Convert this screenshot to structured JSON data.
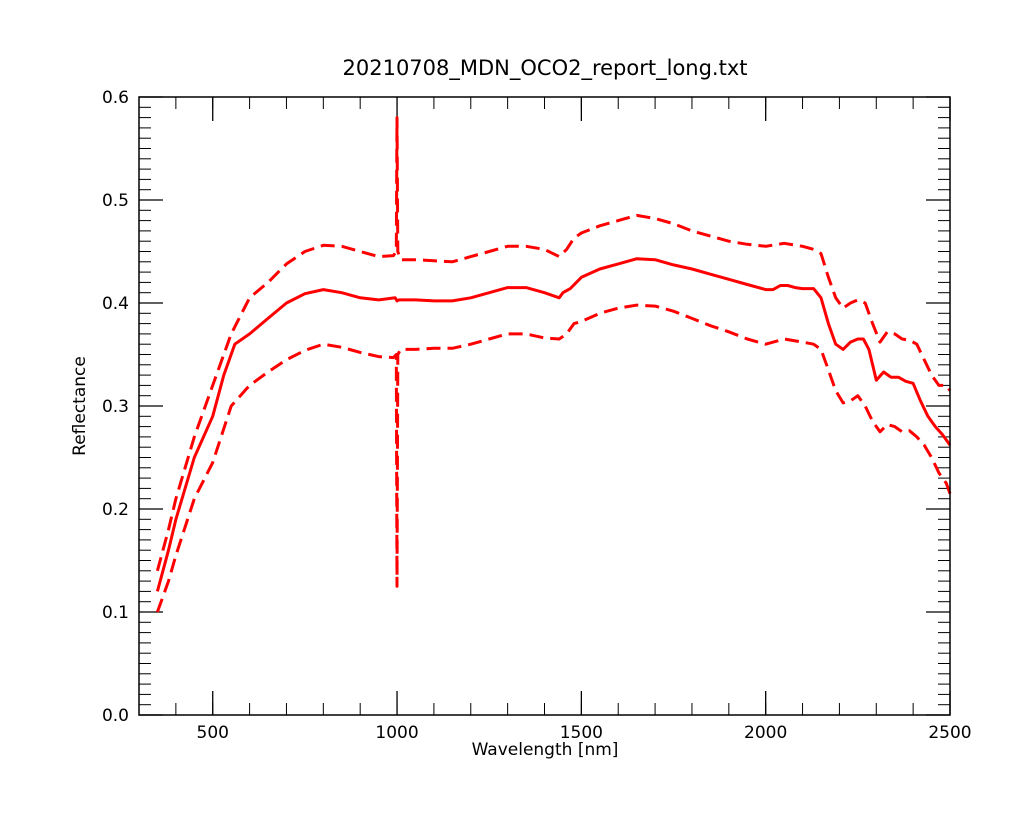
{
  "chart_data": {
    "type": "line",
    "title": "20210708_MDN_OCO2_report_long.txt",
    "xlabel": "Wavelength [nm]",
    "ylabel": "Reflectance",
    "xlim": [
      300,
      2500
    ],
    "ylim": [
      0.0,
      0.6
    ],
    "x_major_ticks": [
      500,
      1000,
      1500,
      2000,
      2500
    ],
    "x_tick_labels": [
      "500",
      "1000",
      "1500",
      "2000",
      "2500"
    ],
    "x_minor_step": 100,
    "y_major_ticks": [
      0.0,
      0.1,
      0.2,
      0.3,
      0.4,
      0.5,
      0.6
    ],
    "y_tick_labels": [
      "0.0",
      "0.1",
      "0.2",
      "0.3",
      "0.4",
      "0.5",
      "0.6"
    ],
    "y_minor_step": 0.01,
    "grid": false,
    "line_color": "#ff0000",
    "series": [
      {
        "style": "solid",
        "x": [
          350,
          380,
          400,
          450,
          500,
          530,
          560,
          600,
          650,
          700,
          750,
          800,
          850,
          900,
          950,
          995,
          1000,
          1005,
          1050,
          1100,
          1150,
          1200,
          1250,
          1300,
          1350,
          1400,
          1440,
          1450,
          1470,
          1500,
          1550,
          1600,
          1650,
          1700,
          1750,
          1800,
          1850,
          1900,
          1950,
          2000,
          2020,
          2040,
          2060,
          2080,
          2100,
          2130,
          2150,
          2170,
          2190,
          2210,
          2230,
          2250,
          2265,
          2280,
          2300,
          2320,
          2340,
          2360,
          2380,
          2400,
          2420,
          2440,
          2460,
          2480,
          2500
        ],
        "y": [
          0.12,
          0.16,
          0.19,
          0.25,
          0.29,
          0.33,
          0.36,
          0.37,
          0.385,
          0.4,
          0.409,
          0.413,
          0.41,
          0.405,
          0.403,
          0.405,
          0.402,
          0.403,
          0.403,
          0.402,
          0.402,
          0.405,
          0.41,
          0.415,
          0.415,
          0.41,
          0.405,
          0.41,
          0.414,
          0.425,
          0.433,
          0.438,
          0.443,
          0.442,
          0.437,
          0.433,
          0.428,
          0.423,
          0.418,
          0.413,
          0.413,
          0.417,
          0.417,
          0.415,
          0.414,
          0.414,
          0.405,
          0.38,
          0.36,
          0.355,
          0.362,
          0.365,
          0.365,
          0.355,
          0.325,
          0.333,
          0.328,
          0.328,
          0.324,
          0.322,
          0.305,
          0.29,
          0.28,
          0.272,
          0.262
        ]
      },
      {
        "style": "dashed",
        "x": [
          350,
          380,
          400,
          450,
          500,
          550,
          600,
          650,
          700,
          750,
          800,
          850,
          900,
          950,
          990,
          998,
          1000,
          1002,
          1010,
          1050,
          1100,
          1150,
          1200,
          1250,
          1300,
          1350,
          1400,
          1440,
          1460,
          1480,
          1500,
          1550,
          1600,
          1650,
          1700,
          1750,
          1800,
          1850,
          1900,
          1950,
          2000,
          2050,
          2100,
          2130,
          2150,
          2170,
          2190,
          2210,
          2230,
          2250,
          2270,
          2290,
          2310,
          2330,
          2350,
          2370,
          2390,
          2410,
          2430,
          2450,
          2470,
          2490,
          2500
        ],
        "y": [
          0.14,
          0.18,
          0.21,
          0.27,
          0.32,
          0.37,
          0.405,
          0.42,
          0.438,
          0.45,
          0.456,
          0.455,
          0.45,
          0.445,
          0.446,
          0.45,
          0.58,
          0.45,
          0.442,
          0.442,
          0.441,
          0.44,
          0.445,
          0.45,
          0.455,
          0.455,
          0.452,
          0.445,
          0.452,
          0.463,
          0.468,
          0.475,
          0.48,
          0.485,
          0.482,
          0.477,
          0.47,
          0.465,
          0.46,
          0.457,
          0.455,
          0.458,
          0.455,
          0.452,
          0.448,
          0.425,
          0.405,
          0.395,
          0.4,
          0.403,
          0.4,
          0.38,
          0.362,
          0.372,
          0.37,
          0.365,
          0.364,
          0.36,
          0.345,
          0.33,
          0.32,
          0.32,
          0.315
        ]
      },
      {
        "style": "dashed",
        "x": [
          350,
          380,
          400,
          450,
          500,
          550,
          600,
          650,
          700,
          750,
          800,
          850,
          900,
          950,
          990,
          998,
          1000,
          1002,
          1010,
          1050,
          1100,
          1150,
          1200,
          1250,
          1300,
          1350,
          1400,
          1440,
          1460,
          1480,
          1500,
          1550,
          1600,
          1650,
          1700,
          1750,
          1800,
          1850,
          1900,
          1950,
          2000,
          2050,
          2100,
          2130,
          2150,
          2170,
          2190,
          2210,
          2230,
          2250,
          2270,
          2290,
          2310,
          2330,
          2350,
          2370,
          2390,
          2410,
          2430,
          2450,
          2470,
          2490,
          2500
        ],
        "y": [
          0.1,
          0.13,
          0.155,
          0.21,
          0.245,
          0.3,
          0.32,
          0.333,
          0.345,
          0.354,
          0.36,
          0.357,
          0.352,
          0.348,
          0.347,
          0.35,
          0.125,
          0.35,
          0.355,
          0.355,
          0.356,
          0.356,
          0.36,
          0.365,
          0.37,
          0.37,
          0.366,
          0.365,
          0.37,
          0.38,
          0.382,
          0.39,
          0.395,
          0.398,
          0.397,
          0.392,
          0.385,
          0.378,
          0.372,
          0.365,
          0.36,
          0.365,
          0.362,
          0.36,
          0.355,
          0.335,
          0.315,
          0.303,
          0.305,
          0.31,
          0.3,
          0.285,
          0.275,
          0.282,
          0.28,
          0.275,
          0.276,
          0.27,
          0.262,
          0.25,
          0.235,
          0.225,
          0.215
        ]
      }
    ]
  }
}
